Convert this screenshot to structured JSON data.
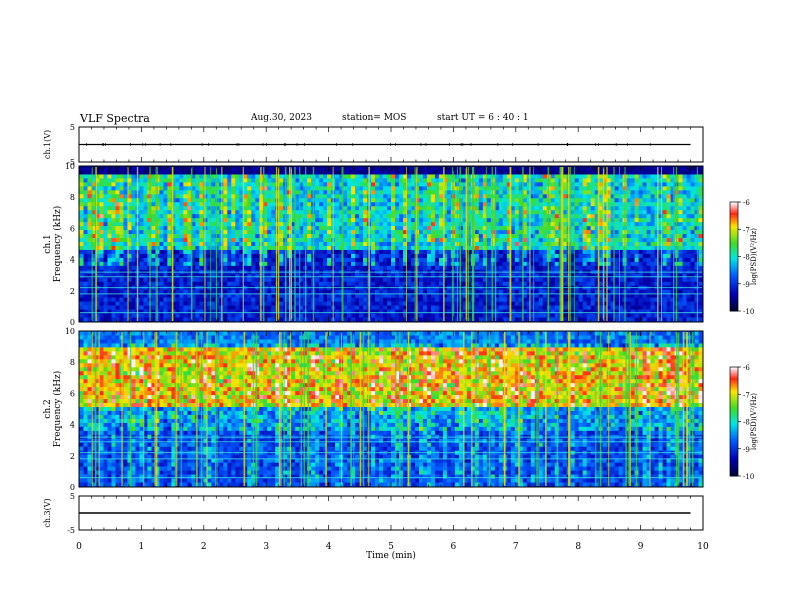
{
  "header": {
    "title": "VLF Spectra",
    "date": "Aug.30, 2023",
    "station": "station= MOS",
    "start": "start UT =  6 : 40 : 1"
  },
  "chart_data": [
    {
      "type": "line",
      "ylabel": "ch.1(V)",
      "ylim": [
        -5,
        5
      ],
      "yticks": [
        "5",
        "-5"
      ],
      "series": [
        {
          "x": [
            0,
            9.8
          ],
          "values": [
            0,
            0
          ]
        }
      ]
    },
    {
      "type": "heatmap",
      "ylabel_ch": "ch.1",
      "ylabel": "Frequency (kHz)",
      "ylim": [
        0,
        10
      ],
      "yticks": [
        "0",
        "2",
        "4",
        "6",
        "8",
        "10"
      ],
      "colorbar": {
        "label": "log(PSD)(V²/Hz)",
        "range": [
          -10,
          -6
        ],
        "ticks": [
          "-6",
          "-7",
          "-8",
          "-9",
          "-10"
        ]
      }
    },
    {
      "type": "heatmap",
      "ylabel_ch": "ch.2",
      "ylabel": "Frequency (kHz)",
      "ylim": [
        0,
        10
      ],
      "yticks": [
        "0",
        "2",
        "4",
        "6",
        "8",
        "10"
      ],
      "colorbar": {
        "label": "log(PSD)(V²/Hz)",
        "range": [
          -10,
          -6
        ],
        "ticks": [
          "-6",
          "-7",
          "-8",
          "-9",
          "-10"
        ]
      }
    },
    {
      "type": "line",
      "ylabel": "ch.3(V)",
      "ylim": [
        -5,
        5
      ],
      "yticks": [
        "5",
        "-5"
      ],
      "series": [
        {
          "x": [
            0,
            9.8
          ],
          "values": [
            0,
            0
          ]
        }
      ]
    }
  ],
  "xaxis": {
    "label": "Time (min)",
    "range": [
      0,
      10
    ],
    "ticks": [
      "0",
      "1",
      "2",
      "3",
      "4",
      "5",
      "6",
      "7",
      "8",
      "9",
      "10"
    ]
  }
}
